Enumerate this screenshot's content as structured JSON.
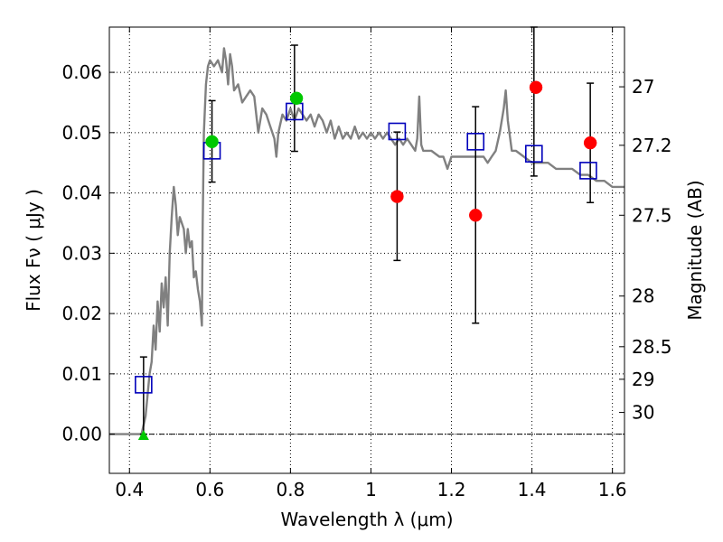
{
  "chart_data": {
    "type": "scatter",
    "xlabel": "Wavelength  λ (μm)",
    "ylabel": "Flux  Fν  ( μJy )",
    "y2label": "Magnitude (AB)",
    "xlim": [
      0.35,
      1.63
    ],
    "ylim": [
      -0.0065,
      0.0675
    ],
    "x_ticks": [
      0.4,
      0.6,
      0.8,
      1.0,
      1.2,
      1.4,
      1.6
    ],
    "x_tick_labels": [
      "0.4",
      "0.6",
      "0.8",
      "1",
      "1.2",
      "1.4",
      "1.6"
    ],
    "y_ticks": [
      0.0,
      0.01,
      0.02,
      0.03,
      0.04,
      0.05,
      0.06
    ],
    "y_tick_labels": [
      "0.00",
      "0.01",
      "0.02",
      "0.03",
      "0.04",
      "0.05",
      "0.06"
    ],
    "mag_ticks": [
      {
        "label": "27",
        "flux": 0.0576
      },
      {
        "label": "27.2",
        "flux": 0.0479
      },
      {
        "label": "27.5",
        "flux": 0.0363
      },
      {
        "label": "28",
        "flux": 0.0229
      },
      {
        "label": "28.5",
        "flux": 0.0145
      },
      {
        "label": "29",
        "flux": 0.0091
      },
      {
        "label": "30",
        "flux": 0.0036
      }
    ],
    "grid": true,
    "series": [
      {
        "kind": "line",
        "color": "#808080",
        "points": [
          [
            0.35,
            0.0
          ],
          [
            0.43,
            0.0
          ],
          [
            0.44,
            0.003
          ],
          [
            0.45,
            0.01
          ],
          [
            0.455,
            0.012
          ],
          [
            0.46,
            0.018
          ],
          [
            0.465,
            0.014
          ],
          [
            0.47,
            0.022
          ],
          [
            0.475,
            0.017
          ],
          [
            0.48,
            0.025
          ],
          [
            0.485,
            0.021
          ],
          [
            0.49,
            0.026
          ],
          [
            0.495,
            0.018
          ],
          [
            0.5,
            0.03
          ],
          [
            0.505,
            0.036
          ],
          [
            0.51,
            0.041
          ],
          [
            0.515,
            0.038
          ],
          [
            0.52,
            0.033
          ],
          [
            0.525,
            0.036
          ],
          [
            0.53,
            0.035
          ],
          [
            0.535,
            0.034
          ],
          [
            0.54,
            0.03
          ],
          [
            0.545,
            0.034
          ],
          [
            0.55,
            0.031
          ],
          [
            0.555,
            0.032
          ],
          [
            0.56,
            0.026
          ],
          [
            0.565,
            0.027
          ],
          [
            0.57,
            0.024
          ],
          [
            0.575,
            0.022
          ],
          [
            0.58,
            0.018
          ],
          [
            0.582,
            0.035
          ],
          [
            0.585,
            0.05
          ],
          [
            0.59,
            0.058
          ],
          [
            0.595,
            0.061
          ],
          [
            0.6,
            0.062
          ],
          [
            0.61,
            0.061
          ],
          [
            0.62,
            0.062
          ],
          [
            0.63,
            0.06
          ],
          [
            0.635,
            0.064
          ],
          [
            0.64,
            0.062
          ],
          [
            0.645,
            0.058
          ],
          [
            0.65,
            0.063
          ],
          [
            0.655,
            0.061
          ],
          [
            0.66,
            0.057
          ],
          [
            0.67,
            0.058
          ],
          [
            0.68,
            0.055
          ],
          [
            0.69,
            0.056
          ],
          [
            0.7,
            0.057
          ],
          [
            0.71,
            0.056
          ],
          [
            0.72,
            0.05
          ],
          [
            0.73,
            0.054
          ],
          [
            0.74,
            0.053
          ],
          [
            0.75,
            0.051
          ],
          [
            0.76,
            0.049
          ],
          [
            0.765,
            0.046
          ],
          [
            0.77,
            0.05
          ],
          [
            0.78,
            0.053
          ],
          [
            0.79,
            0.052
          ],
          [
            0.8,
            0.054
          ],
          [
            0.81,
            0.052
          ],
          [
            0.82,
            0.054
          ],
          [
            0.83,
            0.053
          ],
          [
            0.84,
            0.052
          ],
          [
            0.85,
            0.053
          ],
          [
            0.86,
            0.051
          ],
          [
            0.87,
            0.053
          ],
          [
            0.88,
            0.052
          ],
          [
            0.89,
            0.05
          ],
          [
            0.9,
            0.052
          ],
          [
            0.91,
            0.049
          ],
          [
            0.92,
            0.051
          ],
          [
            0.93,
            0.049
          ],
          [
            0.94,
            0.05
          ],
          [
            0.95,
            0.049
          ],
          [
            0.96,
            0.051
          ],
          [
            0.97,
            0.049
          ],
          [
            0.98,
            0.05
          ],
          [
            0.99,
            0.049
          ],
          [
            1.0,
            0.05
          ],
          [
            1.01,
            0.049
          ],
          [
            1.02,
            0.05
          ],
          [
            1.03,
            0.049
          ],
          [
            1.04,
            0.05
          ],
          [
            1.05,
            0.049
          ],
          [
            1.06,
            0.048
          ],
          [
            1.07,
            0.049
          ],
          [
            1.08,
            0.048
          ],
          [
            1.09,
            0.049
          ],
          [
            1.1,
            0.048
          ],
          [
            1.11,
            0.047
          ],
          [
            1.115,
            0.049
          ],
          [
            1.12,
            0.056
          ],
          [
            1.125,
            0.048
          ],
          [
            1.13,
            0.047
          ],
          [
            1.15,
            0.047
          ],
          [
            1.17,
            0.046
          ],
          [
            1.18,
            0.046
          ],
          [
            1.19,
            0.044
          ],
          [
            1.2,
            0.046
          ],
          [
            1.22,
            0.046
          ],
          [
            1.24,
            0.046
          ],
          [
            1.26,
            0.046
          ],
          [
            1.28,
            0.046
          ],
          [
            1.29,
            0.045
          ],
          [
            1.3,
            0.046
          ],
          [
            1.31,
            0.047
          ],
          [
            1.32,
            0.05
          ],
          [
            1.33,
            0.054
          ],
          [
            1.335,
            0.057
          ],
          [
            1.34,
            0.052
          ],
          [
            1.35,
            0.047
          ],
          [
            1.36,
            0.047
          ],
          [
            1.38,
            0.046
          ],
          [
            1.4,
            0.045
          ],
          [
            1.42,
            0.045
          ],
          [
            1.44,
            0.045
          ],
          [
            1.46,
            0.044
          ],
          [
            1.48,
            0.044
          ],
          [
            1.5,
            0.044
          ],
          [
            1.52,
            0.043
          ],
          [
            1.54,
            0.043
          ],
          [
            1.56,
            0.042
          ],
          [
            1.58,
            0.042
          ],
          [
            1.6,
            0.041
          ],
          [
            1.63,
            0.041
          ]
        ]
      },
      {
        "kind": "open-square",
        "color": "#0000bb",
        "points": [
          [
            0.435,
            0.0082
          ],
          [
            0.605,
            0.047
          ],
          [
            0.81,
            0.0535
          ],
          [
            1.065,
            0.0502
          ],
          [
            1.26,
            0.0485
          ],
          [
            1.405,
            0.0465
          ],
          [
            1.54,
            0.0437
          ]
        ]
      },
      {
        "kind": "filled-circle",
        "color": "#00c800",
        "points": [
          [
            0.605,
            0.0485
          ],
          [
            0.815,
            0.0557
          ]
        ]
      },
      {
        "kind": "filled-circle",
        "color": "#ff0000",
        "points": [
          [
            1.065,
            0.0394
          ],
          [
            1.26,
            0.0363
          ],
          [
            1.41,
            0.0575
          ],
          [
            1.545,
            0.0483
          ]
        ]
      },
      {
        "kind": "triangle",
        "color": "#00c800",
        "points": [
          [
            0.435,
            -0.0002
          ]
        ]
      }
    ],
    "error_bars": [
      {
        "x": 0.435,
        "low": 0.0,
        "high": 0.0128
      },
      {
        "x": 0.605,
        "low": 0.0418,
        "high": 0.0553
      },
      {
        "x": 0.81,
        "low": 0.0469,
        "high": 0.0645
      },
      {
        "x": 1.065,
        "low": 0.0288,
        "high": 0.0501
      },
      {
        "x": 1.26,
        "low": 0.0184,
        "high": 0.0543
      },
      {
        "x": 1.405,
        "low": 0.0428,
        "high": 0.0675
      },
      {
        "x": 1.545,
        "low": 0.0384,
        "high": 0.0582
      }
    ]
  }
}
